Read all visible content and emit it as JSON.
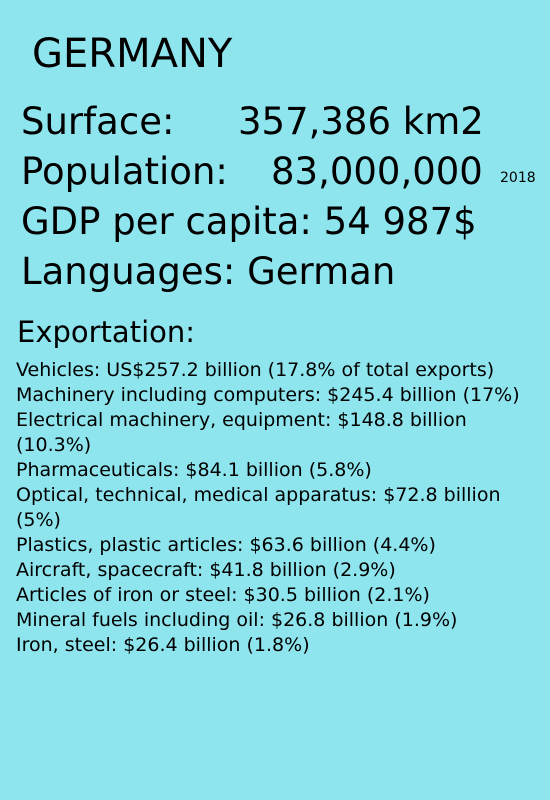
{
  "country": "GERMANY",
  "stats": {
    "surface_label": "Surface:",
    "surface_value": "357,386 km2",
    "population_label": "Population:",
    "population_value": "83,000,000",
    "population_year": "2018",
    "gdp": "GDP per capita: 54 987$",
    "languages": "Languages: German"
  },
  "exportation": {
    "heading": "Exportation:",
    "items": [
      "Vehicles: US$257.2 billion (17.8% of total exports)",
      "Machinery including computers: $245.4 billion (17%)",
      "Electrical machinery, equipment: $148.8 billion (10.3%)",
      "Pharmaceuticals: $84.1 billion (5.8%)",
      "Optical, technical, medical apparatus: $72.8 billion (5%)",
      "Plastics, plastic articles: $63.6 billion (4.4%)",
      "Aircraft, spacecraft: $41.8 billion (2.9%)",
      "Articles of iron or steel: $30.5 billion (2.1%)",
      "Mineral fuels including oil: $26.8 billion (1.9%)",
      "Iron, steel: $26.4 billion (1.8%)"
    ]
  },
  "colors": {
    "background": "#8ee5ee",
    "text": "#000000"
  }
}
